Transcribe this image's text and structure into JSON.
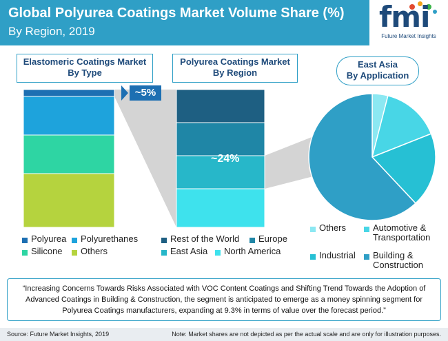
{
  "header": {
    "title": "Global Polyurea Coatings Market Volume Share (%)",
    "subtitle": "By Region, 2019"
  },
  "logo": {
    "text": "fmi",
    "subtext": "Future Market Insights"
  },
  "colors": {
    "header_bg": "#2f9fc6",
    "title_box_border": "#2f9fc6",
    "title_text": "#1e4a7a",
    "callout_bg": "#1d6fb2",
    "connector_gray": "#c8c8c8"
  },
  "panels": {
    "type_title": [
      "Elastomeric Coatings Market",
      "By Type"
    ],
    "region_title": [
      "Polyurea Coatings Market",
      "By Region"
    ],
    "app_title": [
      "East Asia",
      "By Application"
    ]
  },
  "callouts": {
    "polyurea_share": "~5%",
    "east_asia_share": "~24%"
  },
  "chart_data": [
    {
      "type": "bar",
      "stacked": true,
      "categories": [
        "Polyurea",
        "Polyurethanes",
        "Silicone",
        "Others"
      ],
      "values": [
        5,
        28,
        28,
        39
      ],
      "colors": [
        "#1d6fb2",
        "#1ea3dc",
        "#2ed5a3",
        "#b5d33e"
      ],
      "title": "Elastomeric Coatings Market By Type",
      "legend": "bottom"
    },
    {
      "type": "bar",
      "stacked": true,
      "categories": [
        "Rest of the World",
        "Europe",
        "East Asia",
        "North America"
      ],
      "values": [
        24,
        24,
        24,
        28
      ],
      "colors": [
        "#1e5f82",
        "#1f86a6",
        "#27b7c9",
        "#3ee2ed"
      ],
      "title": "Polyurea Coatings Market By Region",
      "legend": "bottom"
    },
    {
      "type": "pie",
      "categories": [
        "Others",
        "Automotive & Transportation",
        "Industrial",
        "Building & Construction"
      ],
      "values": [
        4,
        15,
        19,
        62
      ],
      "colors": [
        "#8ce8f2",
        "#48d6e6",
        "#26c0d4",
        "#2f9fc6"
      ],
      "title": "East Asia By Application",
      "legend": "bottom"
    }
  ],
  "quote": "“Increasing Concerns Towards Risks Associated with VOC Content Coatings and Shifting Trend Towards the Adoption of Advanced Coatings in Building & Construction, the segment is anticipated to emerge as a money spinning segment for Polyurea Coatings manufacturers, expanding at 9.3% in terms of value over the forecast period.”",
  "footer": {
    "source": "Source: Future Market Insights, 2019",
    "note": "Note: Market shares are not depicted as per the actual scale and are only for illustration purposes."
  }
}
